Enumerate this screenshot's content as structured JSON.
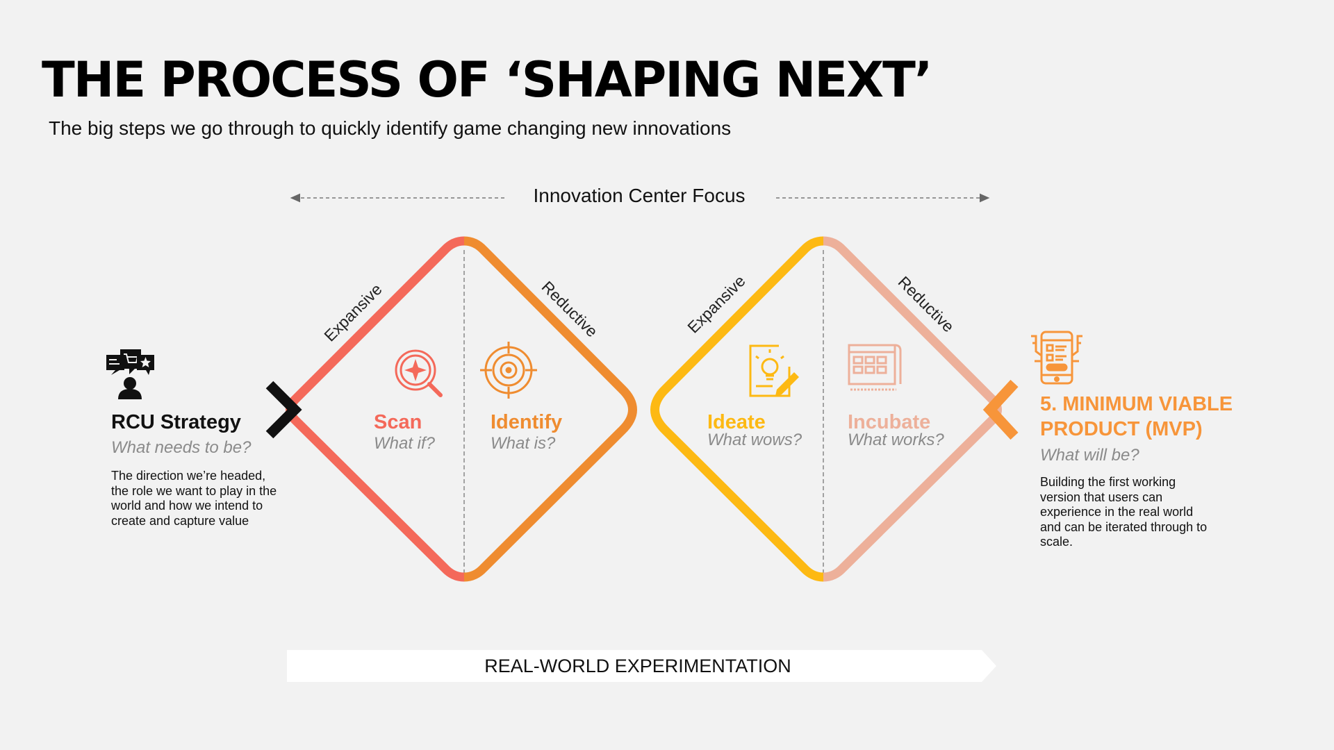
{
  "title": "THE PROCESS OF ‘SHAPING NEXT’",
  "subtitle": "The big steps we go through to quickly identify game changing new innovations",
  "focus_label": "Innovation Center Focus",
  "phase_labels": {
    "expansive_1": "Expansive",
    "reductive_1": "Reductive",
    "expansive_2": "Expansive",
    "reductive_2": "Reductive"
  },
  "steps": [
    {
      "title": "Scan",
      "question": "What if?",
      "color": "#f4695a",
      "icon": "search-compass-icon"
    },
    {
      "title": "Identify",
      "question": "What is?",
      "color": "#ef8c30",
      "icon": "target-icon"
    },
    {
      "title": "Ideate",
      "question": "What wows?",
      "color": "#fdb913",
      "icon": "lightbulb-idea-icon"
    },
    {
      "title": "Incubate",
      "question": "What works?",
      "color": "#edb09a",
      "icon": "blueprint-icon"
    }
  ],
  "strategy": {
    "title": "RCU Strategy",
    "question": "What needs to be?",
    "description": "The direction we’re headed, the role we want to play in the world and how we intend to create and capture value",
    "icon": "strategy-person-icon",
    "color": "#111111"
  },
  "mvp": {
    "title": "5. MINIMUM VIABLE PRODUCT (MVP)",
    "question": "What will be?",
    "description": "Building the first working version that users can experience in the real world and can be iterated through to scale.",
    "icon": "mobile-app-icon",
    "color": "#f7953a"
  },
  "banner_label": "REAL-WORLD EXPERIMENTATION"
}
